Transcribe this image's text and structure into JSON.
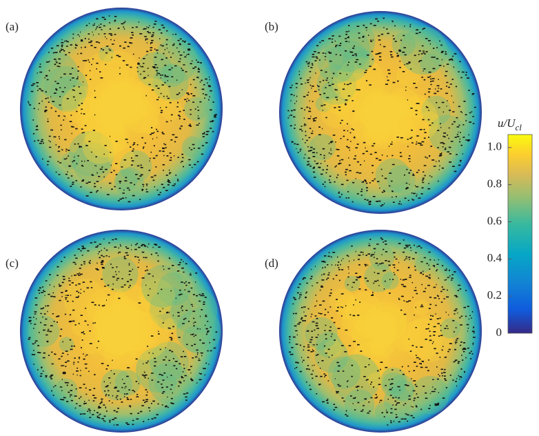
{
  "panels": [
    {
      "label": "(a)"
    },
    {
      "label": "(b)"
    },
    {
      "label": "(c)"
    },
    {
      "label": "(d)"
    }
  ],
  "colorbar": {
    "label": "u/U",
    "label_sub": "cl",
    "ylim": [
      0,
      1.07
    ],
    "yticks": [
      0,
      0.2,
      0.4,
      0.6,
      0.8,
      {
        "value": 1,
        "label": "1.0"
      }
    ]
  }
}
